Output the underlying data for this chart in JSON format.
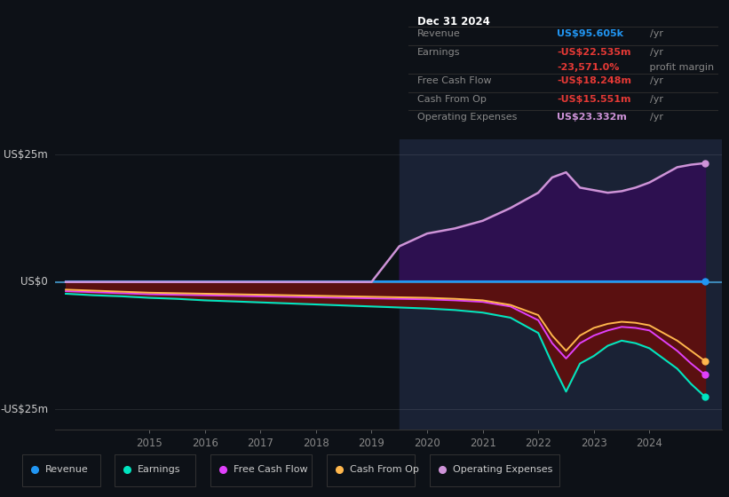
{
  "bg_color": "#0d1117",
  "panel_bg": "#131820",
  "recent_bg": "#1a2030",
  "title": "Dec 31 2024",
  "ylabel_top": "US$25m",
  "ylabel_mid": "US$0",
  "ylabel_bot": "-US$25m",
  "ylim": [
    -29,
    28
  ],
  "xlim_start": 2013.3,
  "xlim_end": 2025.3,
  "years": [
    2013.5,
    2014.0,
    2014.5,
    2015.0,
    2015.5,
    2016.0,
    2016.5,
    2017.0,
    2017.5,
    2018.0,
    2018.5,
    2019.0,
    2019.5,
    2020.0,
    2020.5,
    2021.0,
    2021.5,
    2022.0,
    2022.25,
    2022.5,
    2022.75,
    2023.0,
    2023.25,
    2023.5,
    2023.75,
    2024.0,
    2024.25,
    2024.5,
    2024.75,
    2025.0
  ],
  "revenue": [
    0.1,
    0.1,
    0.1,
    0.1,
    0.1,
    0.1,
    0.1,
    0.1,
    0.1,
    0.1,
    0.1,
    0.1,
    0.1,
    0.1,
    0.1,
    0.1,
    0.1,
    0.1,
    0.1,
    0.1,
    0.1,
    0.1,
    0.1,
    0.1,
    0.1,
    0.1,
    0.1,
    0.1,
    0.1,
    0.1
  ],
  "earnings": [
    -2.3,
    -2.6,
    -2.8,
    -3.1,
    -3.3,
    -3.6,
    -3.8,
    -4.0,
    -4.2,
    -4.4,
    -4.6,
    -4.8,
    -5.0,
    -5.2,
    -5.5,
    -6.0,
    -7.0,
    -10.0,
    -16.0,
    -21.5,
    -16.0,
    -14.5,
    -12.5,
    -11.5,
    -12.0,
    -13.0,
    -15.0,
    -17.0,
    -20.0,
    -22.5
  ],
  "free_cash_flow": [
    -1.8,
    -2.0,
    -2.2,
    -2.4,
    -2.5,
    -2.6,
    -2.7,
    -2.8,
    -2.9,
    -3.0,
    -3.1,
    -3.2,
    -3.3,
    -3.4,
    -3.6,
    -3.9,
    -4.8,
    -7.5,
    -12.0,
    -15.0,
    -12.0,
    -10.5,
    -9.5,
    -8.8,
    -9.0,
    -9.5,
    -11.5,
    -13.5,
    -16.0,
    -18.2
  ],
  "cash_from_op": [
    -1.5,
    -1.7,
    -1.9,
    -2.1,
    -2.2,
    -2.3,
    -2.4,
    -2.5,
    -2.6,
    -2.7,
    -2.8,
    -2.9,
    -3.0,
    -3.1,
    -3.3,
    -3.6,
    -4.5,
    -6.5,
    -10.5,
    -13.5,
    -10.5,
    -9.0,
    -8.2,
    -7.8,
    -8.0,
    -8.5,
    -10.0,
    -11.5,
    -13.5,
    -15.5
  ],
  "op_expenses": [
    0.0,
    0.0,
    0.0,
    0.0,
    0.0,
    0.0,
    0.0,
    0.0,
    0.0,
    0.0,
    0.0,
    0.0,
    7.0,
    9.5,
    10.5,
    12.0,
    14.5,
    17.5,
    20.5,
    21.5,
    18.5,
    18.0,
    17.5,
    17.8,
    18.5,
    19.5,
    21.0,
    22.5,
    23.0,
    23.3
  ],
  "revenue_color": "#2196f3",
  "earnings_color": "#00e5c0",
  "free_cash_flow_color": "#e040fb",
  "cash_from_op_color": "#ffb74d",
  "op_expenses_color": "#ce93d8",
  "info_box": {
    "date": "Dec 31 2024",
    "revenue_label": "Revenue",
    "revenue_value": "US$95.605k",
    "revenue_unit": "/yr",
    "revenue_color": "#2196f3",
    "earnings_label": "Earnings",
    "earnings_value": "-US$22.535m",
    "earnings_unit": "/yr",
    "earnings_color": "#e53935",
    "margin_value": "-23,571.0%",
    "margin_suffix": " profit margin",
    "margin_color": "#e53935",
    "fcf_label": "Free Cash Flow",
    "fcf_value": "-US$18.248m",
    "fcf_unit": "/yr",
    "fcf_color": "#e53935",
    "cop_label": "Cash From Op",
    "cop_value": "-US$15.551m",
    "cop_unit": "/yr",
    "cop_color": "#e53935",
    "opex_label": "Operating Expenses",
    "opex_value": "US$23.332m",
    "opex_unit": "/yr",
    "opex_color": "#ce93d8"
  },
  "legend": [
    {
      "label": "Revenue",
      "color": "#2196f3"
    },
    {
      "label": "Earnings",
      "color": "#00e5c0"
    },
    {
      "label": "Free Cash Flow",
      "color": "#e040fb"
    },
    {
      "label": "Cash From Op",
      "color": "#ffb74d"
    },
    {
      "label": "Operating Expenses",
      "color": "#ce93d8"
    }
  ],
  "xticks": [
    2015,
    2016,
    2017,
    2018,
    2019,
    2020,
    2021,
    2022,
    2023,
    2024
  ],
  "recent_period_start": 2019.5
}
